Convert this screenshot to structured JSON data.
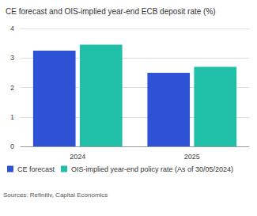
{
  "chart_data": {
    "type": "bar",
    "title": "CE forecast and OIS-implied year-end ECB deposit rate (%)",
    "categories": [
      "2024",
      "2025"
    ],
    "series": [
      {
        "name": "CE forecast",
        "color": "#2d52d6",
        "values": [
          3.25,
          2.5
        ]
      },
      {
        "name": "OIS-implied year-end policy rate (As of 30/05/2024)",
        "color": "#1fbfa8",
        "values": [
          3.45,
          2.7
        ]
      }
    ],
    "ylim": [
      0,
      4
    ],
    "yticks": [
      0,
      1,
      2,
      3,
      4
    ],
    "grid": true,
    "legend": "bottom",
    "source": "Sources: Refinitiv, Capital Economics"
  }
}
